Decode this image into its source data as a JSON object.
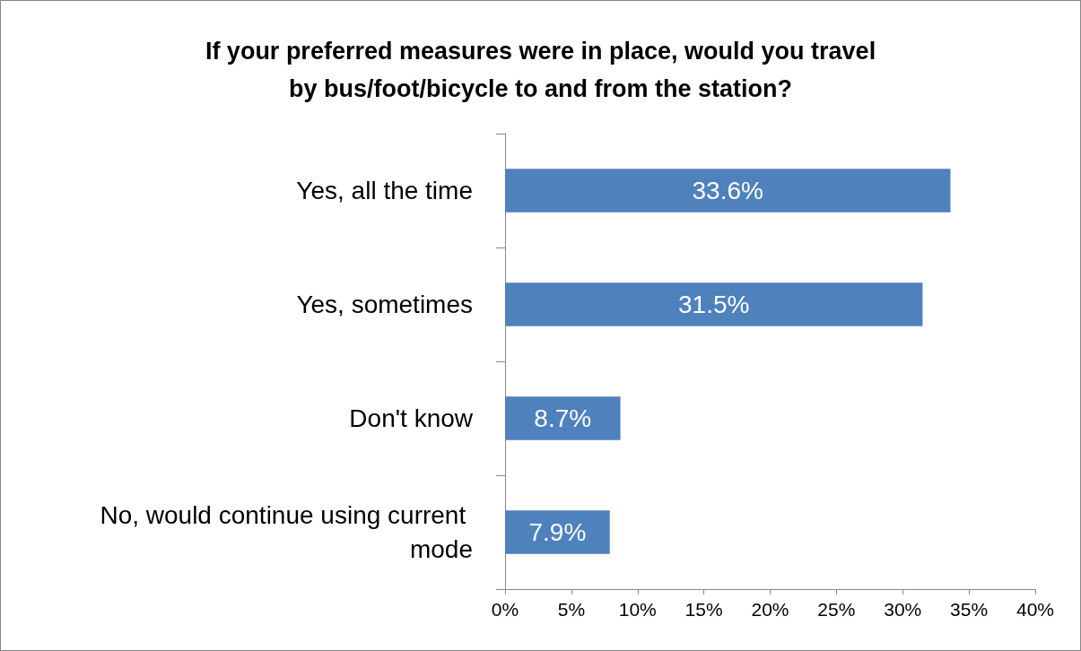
{
  "chart_data": {
    "type": "bar",
    "orientation": "horizontal",
    "title": "If your preferred measures were in place, would you travel\nby bus/foot/bicycle to and from the station?",
    "categories": [
      "Yes, all the time",
      "Yes, sometimes",
      "Don't know",
      "No, would continue using current mode"
    ],
    "values": [
      33.6,
      31.5,
      8.7,
      7.9
    ],
    "value_labels": [
      "33.6%",
      "31.5%",
      "8.7%",
      "7.9%"
    ],
    "color": "#4f81bd",
    "xlim": [
      0,
      40
    ],
    "xticks": [
      {
        "value": 0,
        "label": "0%"
      },
      {
        "value": 5,
        "label": "5%"
      },
      {
        "value": 10,
        "label": "10%"
      },
      {
        "value": 15,
        "label": "15%"
      },
      {
        "value": 20,
        "label": "20%"
      },
      {
        "value": 25,
        "label": "25%"
      },
      {
        "value": 30,
        "label": "30%"
      },
      {
        "value": 35,
        "label": "35%"
      },
      {
        "value": 40,
        "label": "40%"
      }
    ],
    "grid": false
  }
}
